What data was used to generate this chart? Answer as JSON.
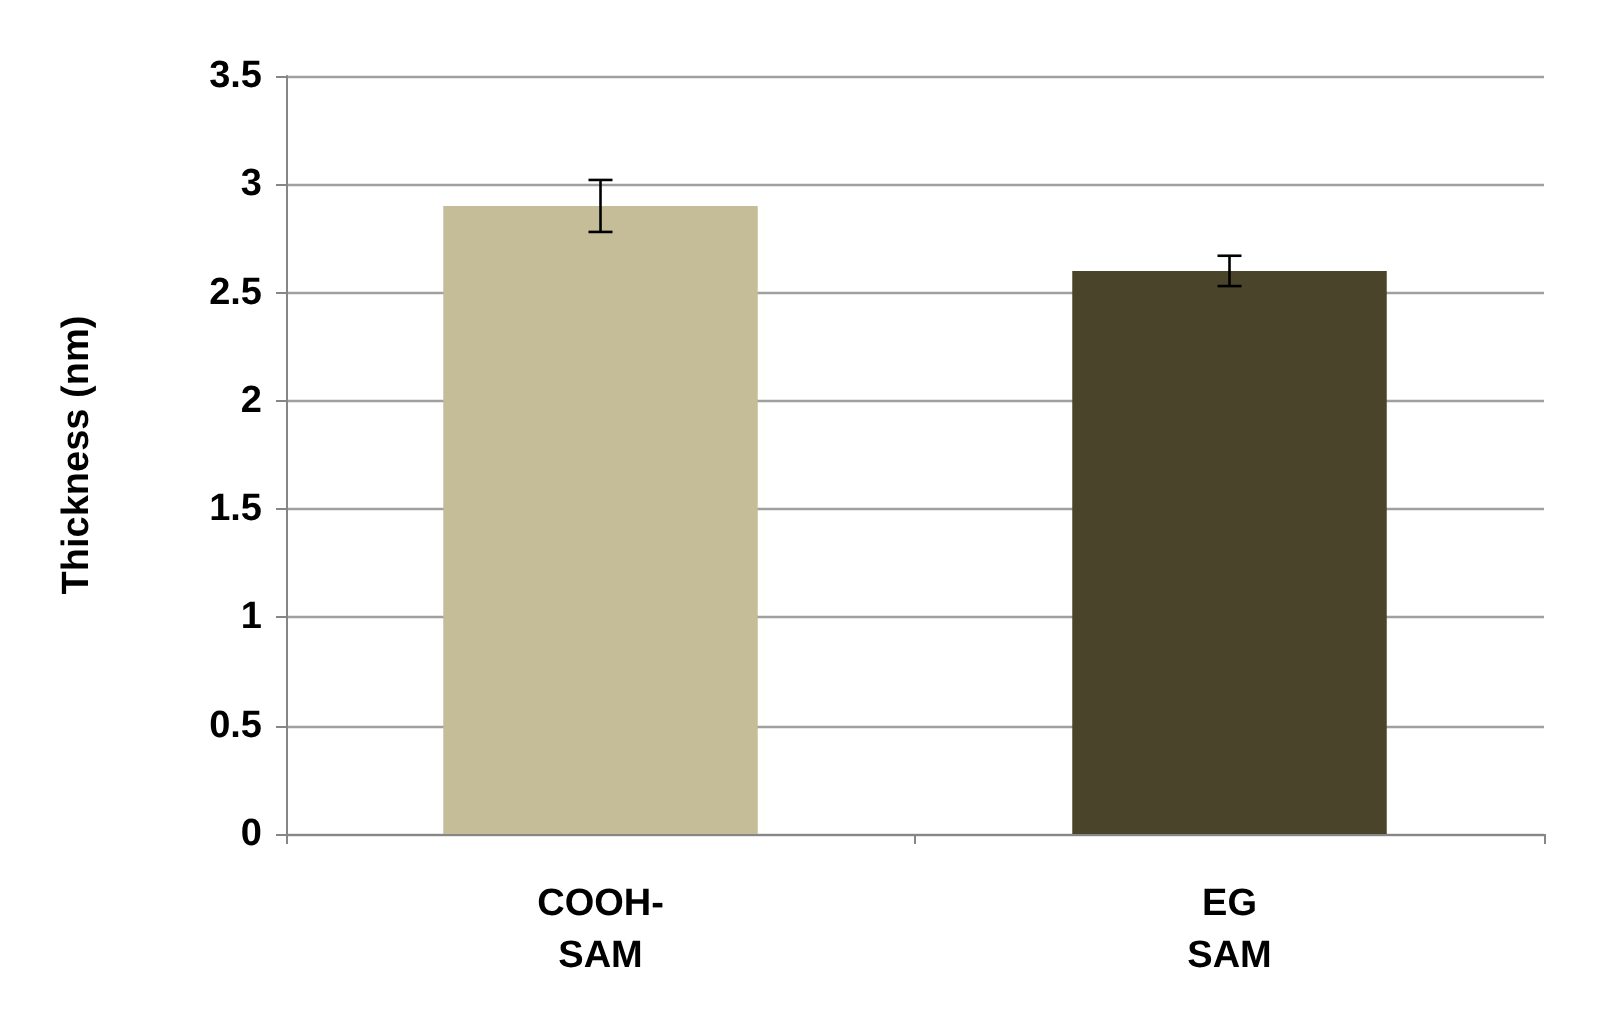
{
  "chart_data": {
    "type": "bar",
    "ylabel": "Thickness (nm)",
    "categories": [
      "COOH-\nSAM",
      "EG\nSAM"
    ],
    "values": [
      2.9,
      2.6
    ],
    "colors": [
      "#c4bd97",
      "#4a452a"
    ],
    "errors": [
      0.12,
      0.07
    ],
    "ylim": [
      0,
      3.5
    ],
    "yticks": [
      0,
      0.5,
      1,
      1.5,
      2,
      2.5,
      3,
      3.5
    ],
    "grid": "y"
  }
}
